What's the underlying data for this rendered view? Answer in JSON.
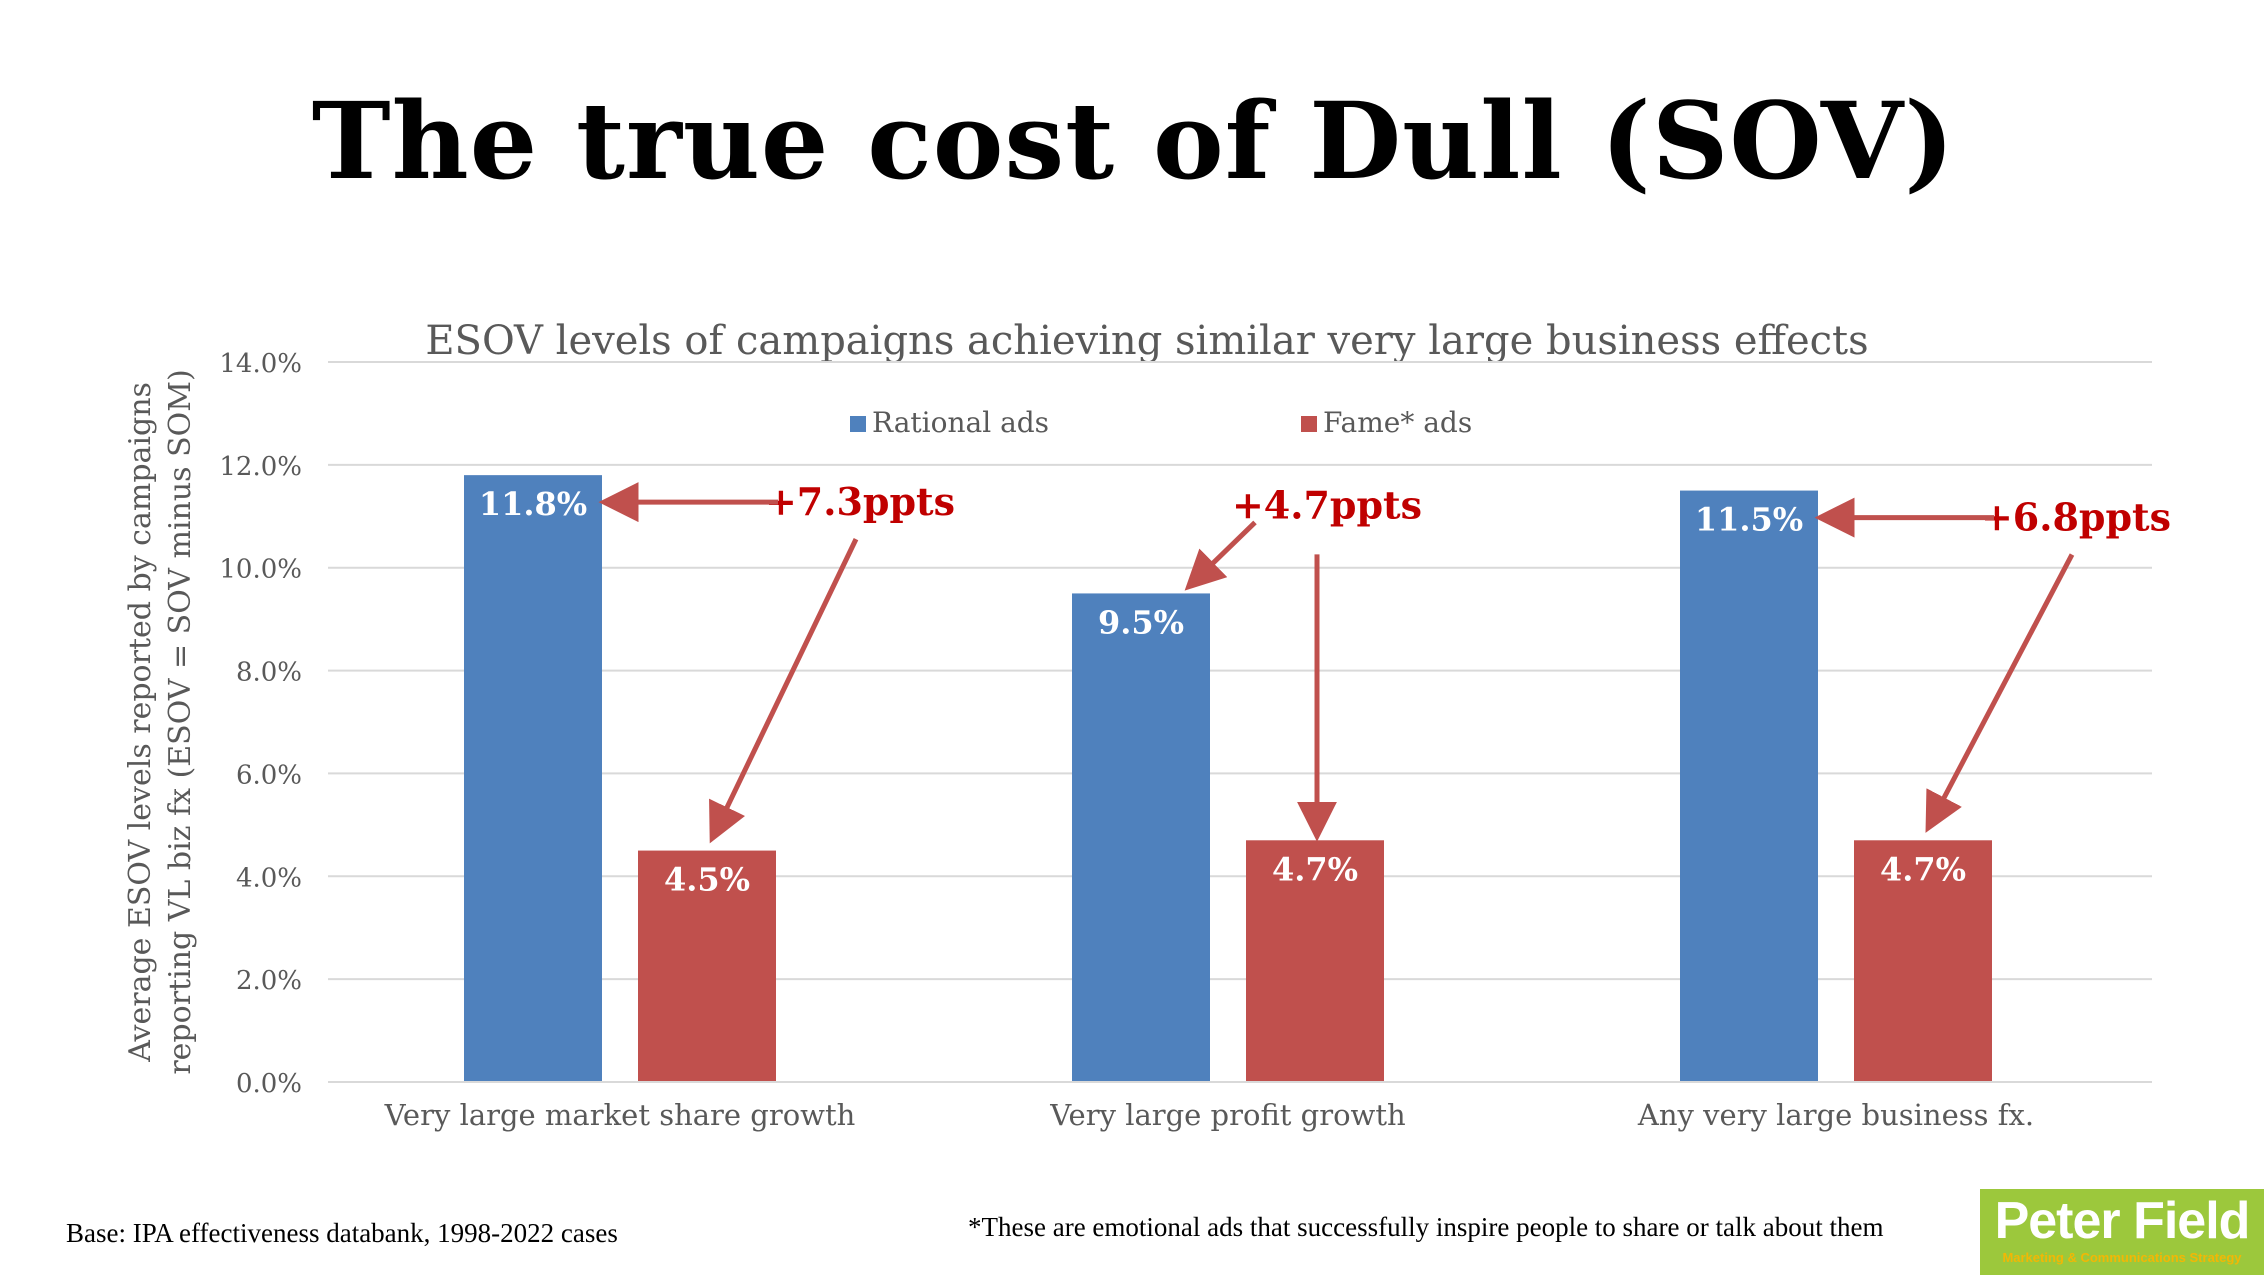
{
  "page": {
    "title": "The true cost of Dull (SOV)",
    "footnote_base": "Base: IPA effectiveness databank, 1998-2022 cases",
    "footnote_fame": "*These are emotional ads that successfully inspire people to share or talk about them",
    "logo": {
      "name": "Peter Field",
      "tagline": "Marketing & Communications Strategy"
    }
  },
  "colors": {
    "rational": "#4f81bd",
    "fame": "#c0504d",
    "annotation": "#c00000",
    "grid": "#d9d9d9",
    "axis_text": "#595959"
  },
  "chart_data": {
    "type": "bar",
    "title": "ESOV levels of campaigns achieving similar very large business effects",
    "ylabel_lines": [
      "Average ESOV levels reported by campaigns",
      "reporting VL biz fx  (ESOV = SOV minus SOM)"
    ],
    "xlabel": "",
    "categories": [
      "Very large market share growth",
      "Very large profit growth",
      "Any very large business fx."
    ],
    "series": [
      {
        "name": "Rational ads",
        "values": [
          11.8,
          9.5,
          11.5
        ],
        "labels": [
          "11.8%",
          "9.5%",
          "11.5%"
        ]
      },
      {
        "name": "Fame* ads",
        "values": [
          4.5,
          4.7,
          4.7
        ],
        "labels": [
          "4.5%",
          "4.7%",
          "4.7%"
        ]
      }
    ],
    "ylim": [
      0,
      14
    ],
    "yticks": [
      "0.0%",
      "2.0%",
      "4.0%",
      "6.0%",
      "8.0%",
      "10.0%",
      "12.0%",
      "14.0%"
    ],
    "grid": true,
    "legend_position": "top-center",
    "annotations": [
      "+7.3ppts",
      "+4.7ppts",
      "+6.8ppts"
    ]
  }
}
